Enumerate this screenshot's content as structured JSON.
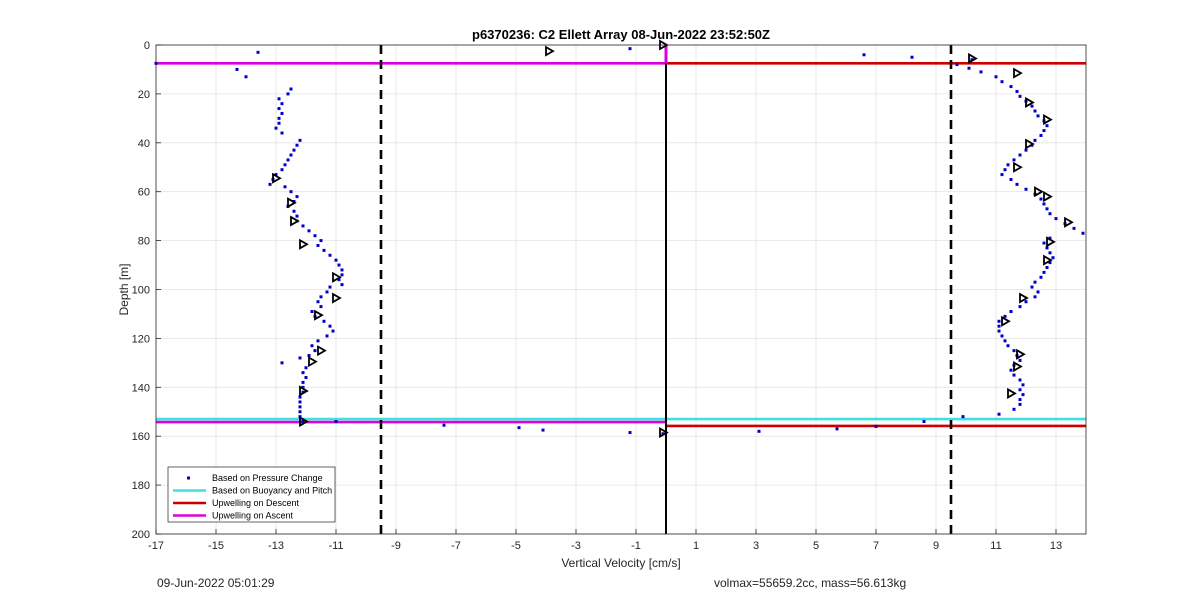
{
  "chart_data": {
    "type": "scatter",
    "title": "p6370236: C2 Ellett Array 08-Jun-2022 23:52:50Z",
    "xlabel": "Vertical Velocity [cm/s]",
    "ylabel": "Depth [m]",
    "xlim": [
      -17,
      14
    ],
    "ylim": [
      0,
      200
    ],
    "y_reversed": true,
    "grid": true,
    "legend_position": "bottom-left",
    "xticks": [
      -17,
      -15,
      -13,
      -11,
      -9,
      -7,
      -5,
      -3,
      -1,
      1,
      3,
      5,
      7,
      9,
      11,
      13
    ],
    "yticks": [
      0,
      20,
      40,
      60,
      80,
      100,
      120,
      140,
      160,
      180,
      200
    ],
    "xtick_labels": [
      "-17",
      "-15",
      "-13",
      "-11",
      "-9",
      "-7",
      "-5",
      "-3",
      "-1",
      "1",
      "3",
      "5",
      "7",
      "9",
      "11",
      "13"
    ],
    "ytick_labels": [
      "0",
      "20",
      "40",
      "60",
      "80",
      "100",
      "120",
      "140",
      "160",
      "180",
      "200"
    ],
    "legend": [
      {
        "label": "Based on Pressure Change",
        "color": "#0000cc",
        "style": "point"
      },
      {
        "label": "Based on Buoyancy and Pitch",
        "color": "#40e0e0",
        "style": "line"
      },
      {
        "label": "Upwelling on Descent",
        "color": "#cc0000",
        "style": "line"
      },
      {
        "label": "Upwelling on Ascent",
        "color": "#dd00dd",
        "style": "line"
      }
    ],
    "series": [
      {
        "name": "Based on Pressure Change",
        "color": "#0000cc",
        "points": [
          [
            -13.6,
            3
          ],
          [
            -17,
            7.5
          ],
          [
            -14.3,
            10
          ],
          [
            -14,
            13
          ],
          [
            -12.5,
            18
          ],
          [
            -12.6,
            20
          ],
          [
            -12.9,
            22
          ],
          [
            -12.8,
            24
          ],
          [
            -12.9,
            26
          ],
          [
            -12.8,
            28
          ],
          [
            -12.9,
            30
          ],
          [
            -12.9,
            32
          ],
          [
            -13,
            34
          ],
          [
            -12.8,
            36
          ],
          [
            -12.2,
            39
          ],
          [
            -12.3,
            41
          ],
          [
            -12.4,
            43
          ],
          [
            -12.5,
            45
          ],
          [
            -12.6,
            47
          ],
          [
            -12.7,
            49
          ],
          [
            -12.8,
            51
          ],
          [
            -13,
            53
          ],
          [
            -13.1,
            55
          ],
          [
            -13.2,
            57
          ],
          [
            -12.7,
            58
          ],
          [
            -12.5,
            60
          ],
          [
            -12.3,
            62
          ],
          [
            -12.4,
            64
          ],
          [
            -12.6,
            66
          ],
          [
            -12.4,
            68
          ],
          [
            -12.3,
            70
          ],
          [
            -12.3,
            72
          ],
          [
            -12.1,
            74
          ],
          [
            -11.9,
            76
          ],
          [
            -11.7,
            78
          ],
          [
            -11.5,
            80
          ],
          [
            -11.6,
            82
          ],
          [
            -11.4,
            84
          ],
          [
            -11.2,
            86
          ],
          [
            -11,
            88
          ],
          [
            -10.9,
            90
          ],
          [
            -10.8,
            92
          ],
          [
            -10.8,
            94
          ],
          [
            -10.9,
            96
          ],
          [
            -10.8,
            98
          ],
          [
            -11.2,
            99
          ],
          [
            -11.3,
            101
          ],
          [
            -11.5,
            103
          ],
          [
            -11.6,
            105
          ],
          [
            -11.5,
            107
          ],
          [
            -11.8,
            109
          ],
          [
            -11.7,
            111
          ],
          [
            -11.4,
            113
          ],
          [
            -11.2,
            115
          ],
          [
            -11.1,
            117
          ],
          [
            -11.3,
            119
          ],
          [
            -11.6,
            121
          ],
          [
            -11.8,
            123
          ],
          [
            -11.7,
            125
          ],
          [
            -11.9,
            127
          ],
          [
            -12.2,
            128
          ],
          [
            -12.8,
            130
          ],
          [
            -12,
            132
          ],
          [
            -12.1,
            134
          ],
          [
            -12,
            136
          ],
          [
            -12.1,
            138
          ],
          [
            -12.1,
            140
          ],
          [
            -12.1,
            142
          ],
          [
            -12.2,
            144
          ],
          [
            -12.2,
            146
          ],
          [
            -12.2,
            148
          ],
          [
            -12.2,
            150
          ],
          [
            -12.2,
            152
          ],
          [
            -12.1,
            154
          ],
          [
            -11,
            154
          ],
          [
            -7.4,
            155.5
          ],
          [
            -4.9,
            156.5
          ],
          [
            -4.1,
            157.5
          ],
          [
            -1.2,
            158.5
          ],
          [
            -0.1,
            159
          ],
          [
            3.1,
            158
          ],
          [
            5.7,
            157
          ],
          [
            7,
            156
          ],
          [
            8.6,
            154
          ],
          [
            9.9,
            152
          ],
          [
            -1.2,
            1.5
          ],
          [
            6.6,
            4
          ],
          [
            8.2,
            5
          ],
          [
            10.2,
            6
          ],
          [
            9.7,
            8
          ],
          [
            10.1,
            9.5
          ],
          [
            10.5,
            11
          ],
          [
            11,
            13
          ],
          [
            11.2,
            15
          ],
          [
            11.5,
            17
          ],
          [
            11.7,
            19
          ],
          [
            11.8,
            21
          ],
          [
            12,
            23
          ],
          [
            12.2,
            25
          ],
          [
            12.3,
            27
          ],
          [
            12.4,
            29
          ],
          [
            12.6,
            31
          ],
          [
            12.7,
            33
          ],
          [
            12.6,
            35
          ],
          [
            12.5,
            37
          ],
          [
            12.3,
            39
          ],
          [
            12.2,
            41
          ],
          [
            12,
            43
          ],
          [
            11.8,
            45
          ],
          [
            11.6,
            47
          ],
          [
            11.4,
            49
          ],
          [
            11.3,
            51
          ],
          [
            11.2,
            53
          ],
          [
            11.5,
            55
          ],
          [
            11.7,
            57
          ],
          [
            12,
            59
          ],
          [
            12.3,
            61
          ],
          [
            12.5,
            63
          ],
          [
            12.6,
            65
          ],
          [
            12.7,
            67
          ],
          [
            12.8,
            69
          ],
          [
            13,
            71
          ],
          [
            13.3,
            73
          ],
          [
            13.6,
            75
          ],
          [
            13.9,
            77
          ],
          [
            12.8,
            79
          ],
          [
            12.6,
            81
          ],
          [
            12.7,
            83
          ],
          [
            12.8,
            85
          ],
          [
            12.9,
            87
          ],
          [
            12.8,
            89
          ],
          [
            12.7,
            91
          ],
          [
            12.6,
            93
          ],
          [
            12.5,
            95
          ],
          [
            12.3,
            97
          ],
          [
            12.2,
            99
          ],
          [
            12.4,
            101
          ],
          [
            12.3,
            103
          ],
          [
            12,
            105
          ],
          [
            11.8,
            107
          ],
          [
            11.5,
            109
          ],
          [
            11.3,
            111
          ],
          [
            11.1,
            113
          ],
          [
            11.1,
            115
          ],
          [
            11.1,
            117
          ],
          [
            11.2,
            119
          ],
          [
            11.3,
            121
          ],
          [
            11.4,
            123
          ],
          [
            11.6,
            125
          ],
          [
            11.7,
            127
          ],
          [
            11.8,
            129
          ],
          [
            11.6,
            131
          ],
          [
            11.5,
            133
          ],
          [
            11.6,
            135
          ],
          [
            11.8,
            137
          ],
          [
            11.9,
            139
          ],
          [
            11.8,
            141
          ],
          [
            11.9,
            143
          ],
          [
            11.8,
            145
          ],
          [
            11.8,
            147
          ],
          [
            11.6,
            149
          ],
          [
            11.1,
            151
          ]
        ]
      },
      {
        "name": "Based on Buoyancy and Pitch",
        "color": "#000000",
        "marker": "triangle-right",
        "points": [
          [
            -3.9,
            2.5
          ],
          [
            -0.1,
            0
          ],
          [
            10.2,
            5.5
          ],
          [
            11.7,
            11.5
          ],
          [
            12.1,
            23.5
          ],
          [
            12.7,
            30.5
          ],
          [
            12.1,
            40.5
          ],
          [
            11.7,
            50
          ],
          [
            12.4,
            60
          ],
          [
            12.7,
            62
          ],
          [
            13.4,
            72.5
          ],
          [
            12.8,
            80.5
          ],
          [
            12.7,
            88
          ],
          [
            11.9,
            103.5
          ],
          [
            11.3,
            113
          ],
          [
            11.8,
            126.5
          ],
          [
            11.7,
            131.5
          ],
          [
            11.5,
            142.5
          ],
          [
            -13,
            54.5
          ],
          [
            -12.5,
            64.5
          ],
          [
            -12.4,
            72
          ],
          [
            -12.1,
            81.5
          ],
          [
            -11,
            95
          ],
          [
            -11,
            103.5
          ],
          [
            -11.6,
            110.5
          ],
          [
            -11.5,
            125
          ],
          [
            -11.8,
            129.5
          ],
          [
            -12.1,
            141.5
          ],
          [
            -12.1,
            154
          ],
          [
            -0.1,
            158.5
          ]
        ]
      }
    ],
    "horizontal_lines": [
      {
        "name": "Upwelling on Ascent",
        "color": "#dd00dd",
        "y": 7.5,
        "x": [
          -17,
          0
        ]
      },
      {
        "name": "Upwelling on Descent",
        "color": "#cc0000",
        "y": 7.5,
        "x": [
          0,
          14
        ]
      },
      {
        "name": "Based on Buoyancy and Pitch",
        "color": "#40e0e0",
        "y": 153,
        "x": [
          -17,
          14
        ]
      },
      {
        "name": "Upwelling on Ascent",
        "color": "#dd00dd",
        "y": 154.2,
        "x": [
          -17,
          0
        ]
      },
      {
        "name": "Upwelling on Descent",
        "color": "#cc0000",
        "y": 155.8,
        "x": [
          0,
          14
        ]
      }
    ],
    "vertical_lines": [
      {
        "x": -9.5,
        "style": "dashed",
        "color": "#000000"
      },
      {
        "x": 9.5,
        "style": "dashed",
        "color": "#000000"
      },
      {
        "x": 0,
        "style": "solid",
        "color": "#000000"
      },
      {
        "x": 0,
        "style": "solid",
        "color": "#dd00dd",
        "y": [
          0,
          7.5
        ]
      }
    ]
  },
  "footer": {
    "timestamp": "09-Jun-2022 05:01:29",
    "info": "volmax=55659.2cc, mass=56.613kg"
  }
}
